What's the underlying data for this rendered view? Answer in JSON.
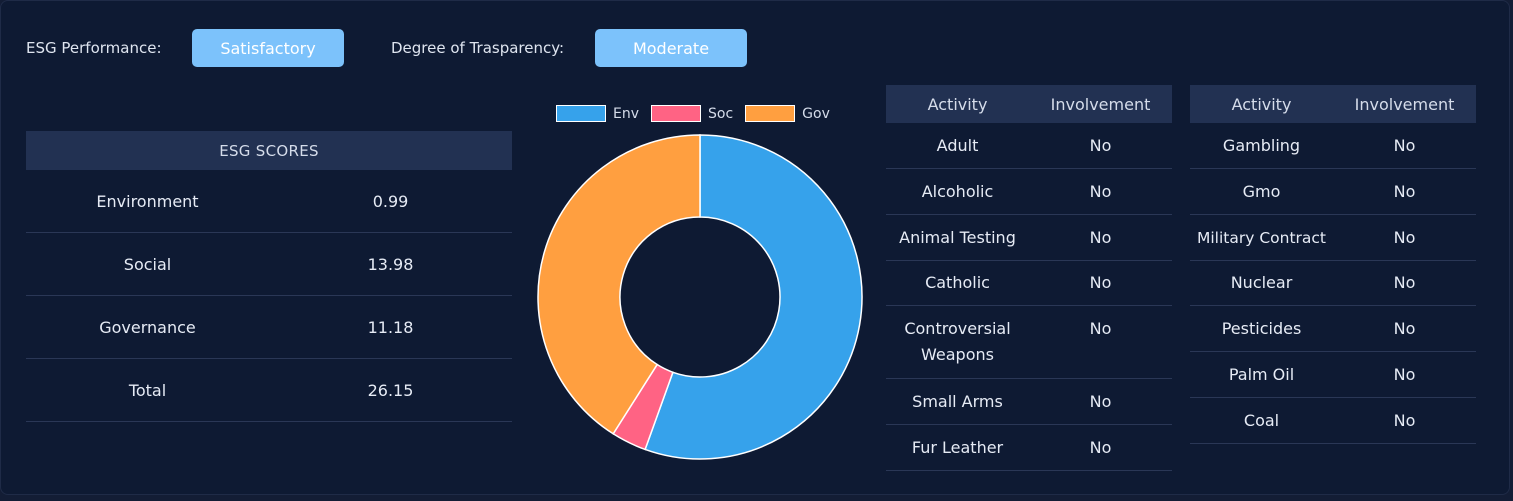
{
  "header": {
    "esg_performance_label": "ESG Performance:",
    "esg_performance_value": "Satisfactory",
    "transparency_label": "Degree of Trasparency:",
    "transparency_value": "Moderate"
  },
  "scores": {
    "title": "ESG SCORES",
    "rows": [
      {
        "label": "Environment",
        "value": "0.99"
      },
      {
        "label": "Social",
        "value": "13.98"
      },
      {
        "label": "Governance",
        "value": "11.18"
      },
      {
        "label": "Total",
        "value": "26.15"
      }
    ]
  },
  "chart_data": {
    "type": "pie",
    "donut": true,
    "legend_position": "top",
    "legend": [
      "Env",
      "Soc",
      "Gov"
    ],
    "values": [
      55.5,
      3.5,
      41.0
    ],
    "colors": [
      "#36a2eb",
      "#ff6384",
      "#ff9f40"
    ]
  },
  "activities_left": {
    "col_activity": "Activity",
    "col_involvement": "Involvement",
    "rows": [
      {
        "activity": "Adult",
        "involvement": "No"
      },
      {
        "activity": "Alcoholic",
        "involvement": "No"
      },
      {
        "activity": "Animal Testing",
        "involvement": "No"
      },
      {
        "activity": "Catholic",
        "involvement": "No"
      },
      {
        "activity": "Controversial Weapons",
        "involvement": "No"
      },
      {
        "activity": "Small Arms",
        "involvement": "No"
      },
      {
        "activity": "Fur Leather",
        "involvement": "No"
      }
    ]
  },
  "activities_right": {
    "col_activity": "Activity",
    "col_involvement": "Involvement",
    "rows": [
      {
        "activity": "Gambling",
        "involvement": "No"
      },
      {
        "activity": "Gmo",
        "involvement": "No"
      },
      {
        "activity": "Military Contract",
        "involvement": "No"
      },
      {
        "activity": "Nuclear",
        "involvement": "No"
      },
      {
        "activity": "Pesticides",
        "involvement": "No"
      },
      {
        "activity": "Palm Oil",
        "involvement": "No"
      },
      {
        "activity": "Coal",
        "involvement": "No"
      }
    ]
  }
}
